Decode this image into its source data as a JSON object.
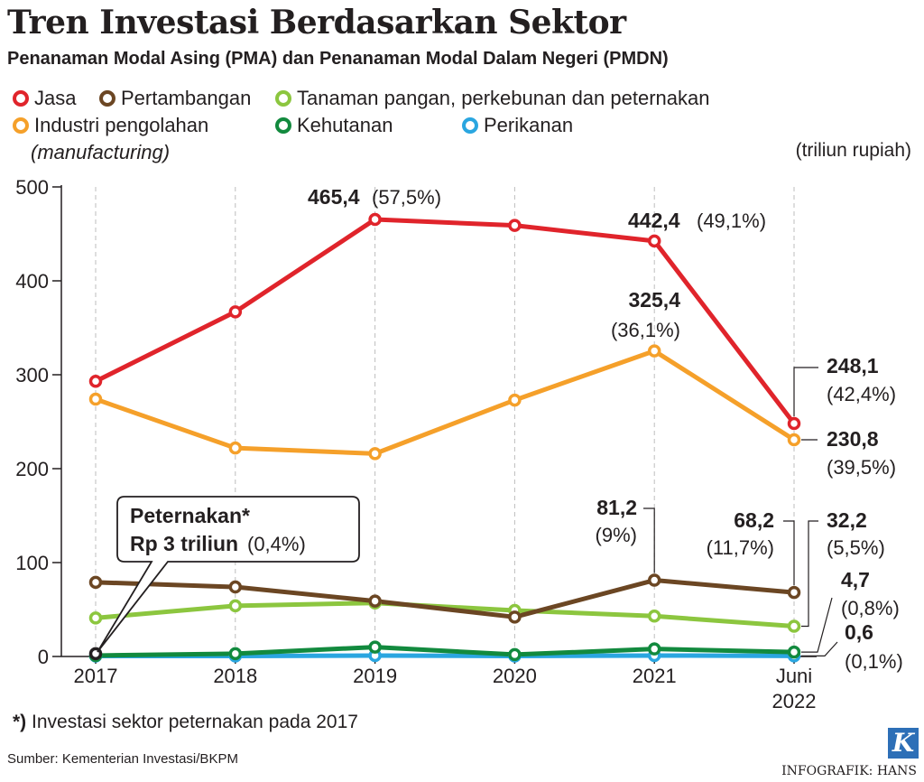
{
  "title": "Tren Investasi Berdasarkan Sektor",
  "subtitle": "Penanaman Modal Asing (PMA) dan Penanaman Modal Dalam Negeri (PMDN)",
  "unit_label": "(triliun rupiah)",
  "legend": [
    {
      "label": "Jasa",
      "color": "#e0242b"
    },
    {
      "label": "Pertambangan",
      "color": "#6b4623"
    },
    {
      "label": "Tanaman pangan, perkebunan dan peternakan",
      "color": "#8cc63f"
    },
    {
      "label": "Industri pengolahan",
      "sublabel": "(manufacturing)",
      "color": "#f5a02a"
    },
    {
      "label": "Kehutanan",
      "color": "#128a3e"
    },
    {
      "label": "Perikanan",
      "color": "#2aa6e0"
    }
  ],
  "callout": {
    "line1": "Peternakan*",
    "line2_bold": "Rp 3 triliun",
    "line2_rest": "(0,4%)"
  },
  "footnote": {
    "marker": "*)",
    "text": "Investasi sektor peternakan pada 2017"
  },
  "source": "Sumber: Kementerian Investasi/BKPM",
  "credit": "INFOGRAFIK: HANS",
  "logo_letter": "K",
  "chart_data": {
    "type": "line",
    "title": "Tren Investasi Berdasarkan Sektor",
    "ylabel": "(triliun rupiah)",
    "ylim": [
      0,
      500
    ],
    "yticks": [
      0,
      100,
      200,
      300,
      400,
      500
    ],
    "categories": [
      "2017",
      "2018",
      "2019",
      "2020",
      "2021",
      "Juni 2022"
    ],
    "series": [
      {
        "name": "Jasa",
        "color": "#e0242b",
        "values": [
          293,
          367,
          465.4,
          459,
          442.4,
          248.1
        ]
      },
      {
        "name": "Industri pengolahan (manufacturing)",
        "color": "#f5a02a",
        "values": [
          274,
          222,
          216,
          273,
          325.4,
          230.8
        ]
      },
      {
        "name": "Pertambangan",
        "color": "#6b4623",
        "values": [
          79,
          74,
          59,
          42,
          81.2,
          68.2
        ]
      },
      {
        "name": "Tanaman pangan, perkebunan dan peternakan",
        "color": "#8cc63f",
        "values": [
          41,
          54,
          57,
          49,
          43,
          32.2
        ]
      },
      {
        "name": "Kehutanan",
        "color": "#128a3e",
        "values": [
          1,
          3,
          10,
          2,
          8,
          4.7
        ]
      },
      {
        "name": "Perikanan",
        "color": "#2aa6e0",
        "values": [
          0.5,
          0.5,
          1,
          0.5,
          1,
          0.6
        ]
      }
    ],
    "special_point": {
      "name": "Peternakan 2017",
      "category": "2017",
      "value": 3,
      "color": "#231f20"
    },
    "annotations": [
      {
        "value": "465,4",
        "pct": "(57,5%)"
      },
      {
        "value": "442,4",
        "pct": "(49,1%)"
      },
      {
        "value": "325,4",
        "pct": "(36,1%)"
      },
      {
        "value": "248,1",
        "pct": "(42,4%)"
      },
      {
        "value": "230,8",
        "pct": "(39,5%)"
      },
      {
        "value": "81,2",
        "pct": "(9%)"
      },
      {
        "value": "68,2",
        "pct": "(11,7%)"
      },
      {
        "value": "32,2",
        "pct": "(5,5%)"
      },
      {
        "value": "4,7",
        "pct": "(0,8%)"
      },
      {
        "value": "0,6",
        "pct": "(0,1%)"
      }
    ]
  }
}
